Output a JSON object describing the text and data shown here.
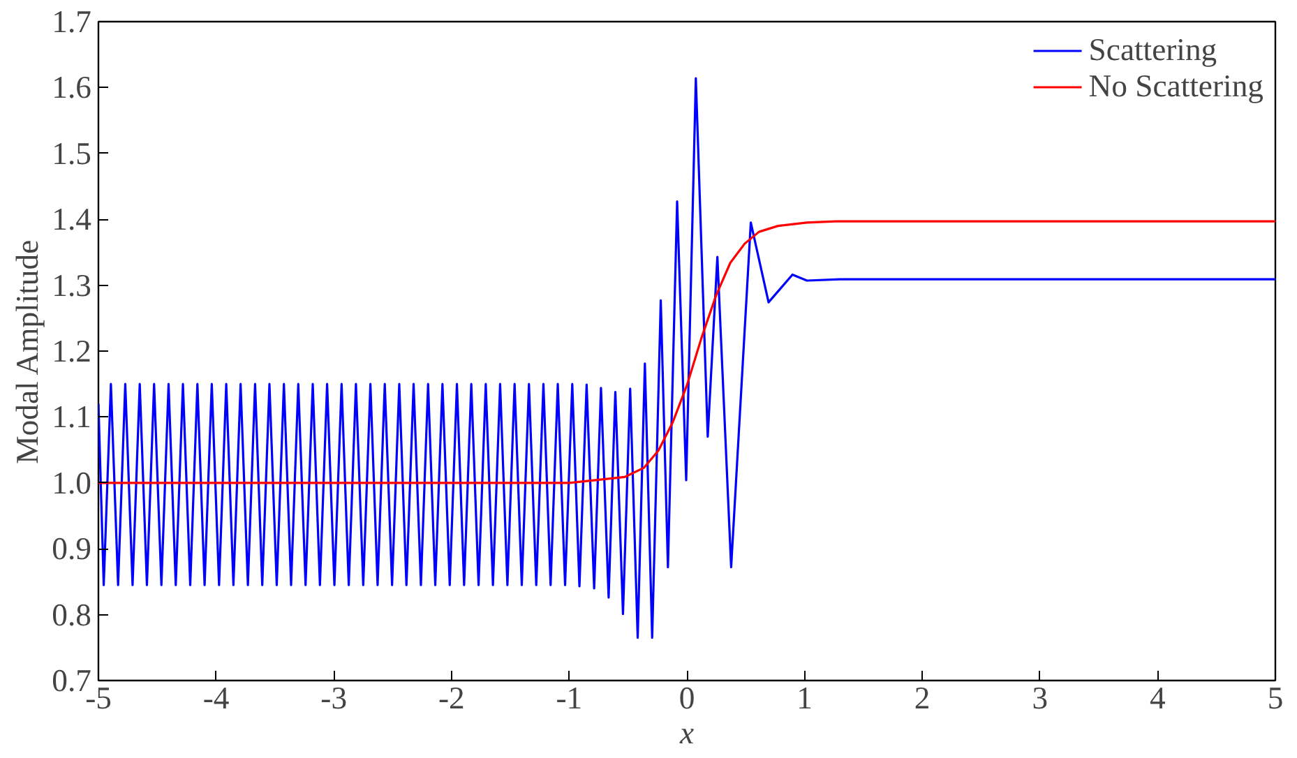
{
  "chart_data": {
    "type": "line",
    "xlabel": "x",
    "ylabel": "Modal Amplitude",
    "xlim": [
      -5,
      5
    ],
    "ylim": [
      0.7,
      1.7
    ],
    "xticks": [
      -5,
      -4,
      -3,
      -2,
      -1,
      0,
      1,
      2,
      3,
      4,
      5
    ],
    "yticks": [
      0.7,
      0.8,
      0.9,
      {
        "value": 1.0,
        "label": "1.0"
      },
      1.1,
      1.2,
      1.3,
      1.4,
      1.5,
      1.6,
      1.7
    ],
    "grid": false,
    "legend": "top right",
    "marker": "none",
    "line_style": "solid",
    "series": [
      {
        "name": "Scattering",
        "color": "#0000ff",
        "x": [
          -5,
          -4.955,
          -4.894,
          -4.833,
          -4.772,
          -4.71,
          -4.649,
          -4.588,
          -4.527,
          -4.465,
          -4.404,
          -4.343,
          -4.282,
          -4.22,
          -4.159,
          -4.098,
          -4.037,
          -3.975,
          -3.914,
          -3.853,
          -3.792,
          -3.73,
          -3.669,
          -3.608,
          -3.547,
          -3.485,
          -3.424,
          -3.363,
          -3.302,
          -3.24,
          -3.179,
          -3.118,
          -3.057,
          -2.995,
          -2.934,
          -2.873,
          -2.812,
          -2.75,
          -2.689,
          -2.628,
          -2.567,
          -2.505,
          -2.444,
          -2.383,
          -2.322,
          -2.26,
          -2.199,
          -2.138,
          -2.077,
          -2.015,
          -1.954,
          -1.893,
          -1.832,
          -1.77,
          -1.709,
          -1.648,
          -1.587,
          -1.525,
          -1.464,
          -1.403,
          -1.342,
          -1.28,
          -1.219,
          -1.158,
          -1.097,
          -1.035,
          -0.974,
          -0.913,
          -0.852,
          -0.788,
          -0.73,
          -0.665,
          -0.608,
          -0.543,
          -0.482,
          -0.418,
          -0.357,
          -0.295,
          -0.222,
          -0.161,
          -0.083,
          -0.006,
          0.076,
          0.177,
          0.259,
          0.376,
          0.543,
          0.694,
          0.897,
          1.02,
          1.3,
          5
        ],
        "values": [
          1.12,
          0.845,
          1.15,
          0.845,
          1.15,
          0.845,
          1.15,
          0.845,
          1.15,
          0.845,
          1.15,
          0.845,
          1.15,
          0.845,
          1.15,
          0.845,
          1.15,
          0.845,
          1.15,
          0.845,
          1.15,
          0.845,
          1.15,
          0.845,
          1.15,
          0.845,
          1.15,
          0.845,
          1.15,
          0.845,
          1.15,
          0.845,
          1.15,
          0.845,
          1.15,
          0.845,
          1.15,
          0.845,
          1.15,
          0.845,
          1.15,
          0.845,
          1.15,
          0.845,
          1.15,
          0.845,
          1.15,
          0.845,
          1.15,
          0.845,
          1.15,
          0.845,
          1.15,
          0.845,
          1.15,
          0.845,
          1.15,
          0.845,
          1.15,
          0.845,
          1.15,
          0.845,
          1.15,
          0.845,
          1.15,
          0.845,
          1.15,
          0.843,
          1.149,
          0.84,
          1.144,
          0.826,
          1.138,
          0.801,
          1.143,
          0.765,
          1.181,
          0.765,
          1.277,
          0.872,
          1.427,
          1.004,
          1.614,
          1.07,
          1.343,
          0.872,
          1.395,
          1.274,
          1.316,
          1.307,
          1.309,
          1.309
        ]
      },
      {
        "name": "No Scattering",
        "color": "#ff0000",
        "x": [
          -5,
          -1,
          -0.527,
          -0.364,
          -0.242,
          -0.12,
          0.002,
          0.124,
          0.247,
          0.369,
          0.491,
          0.613,
          0.775,
          1.02,
          1.264,
          5
        ],
        "values": [
          1.0,
          1.0,
          1.009,
          1.023,
          1.049,
          1.092,
          1.149,
          1.22,
          1.284,
          1.334,
          1.363,
          1.381,
          1.39,
          1.395,
          1.397,
          1.397
        ]
      }
    ]
  }
}
